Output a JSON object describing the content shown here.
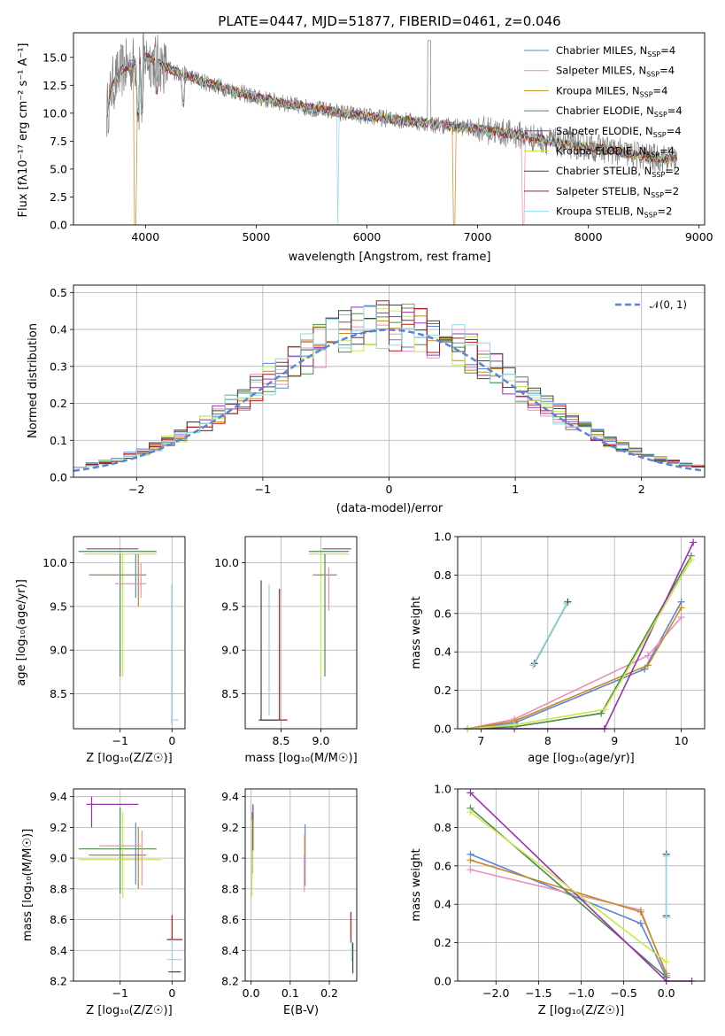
{
  "chart_data": [
    {
      "id": "spectrum",
      "type": "line",
      "title": "PLATE=0447, MJD=51877, FIBERID=0461, z=0.046",
      "xlabel": "wavelength [Angstrom, rest frame]",
      "ylabel": "Flux [fλ10⁻¹⁷ erg cm⁻² s⁻¹ A⁻¹]",
      "xlim": [
        3350,
        9050
      ],
      "ylim": [
        0,
        17.2
      ],
      "xticks": [
        "4000",
        "5000",
        "6000",
        "7000",
        "8000",
        "9000"
      ],
      "yticks": [
        "0.0",
        "2.5",
        "5.0",
        "7.5",
        "10.0",
        "12.5",
        "15.0"
      ],
      "xtick_values": [
        4000,
        5000,
        6000,
        7000,
        8000,
        9000
      ],
      "ytick_values": [
        0,
        2.5,
        5,
        7.5,
        10,
        12.5,
        15
      ],
      "continuum": {
        "x": [
          3650,
          3700,
          3800,
          3900,
          4000,
          4100,
          4200,
          4300,
          4400,
          4500,
          4600,
          4800,
          5000,
          5200,
          5400,
          5600,
          5800,
          6000,
          6200,
          6400,
          6600,
          6800,
          7000,
          7200,
          7400,
          7600,
          7800,
          8000,
          8200,
          8400,
          8600,
          8800
        ],
        "y": [
          10.0,
          12.5,
          14.0,
          14.5,
          15.0,
          14.6,
          14.0,
          13.6,
          13.3,
          12.9,
          12.6,
          12.0,
          11.4,
          11.0,
          10.6,
          10.3,
          10.0,
          9.7,
          9.5,
          9.3,
          9.0,
          8.8,
          8.6,
          8.3,
          8.0,
          7.6,
          7.2,
          7.0,
          6.7,
          6.3,
          6.0,
          5.9
        ]
      },
      "legend_position": "upper right",
      "series": [
        {
          "name": "Chabrier MILES, N",
          "sub": "SSP",
          "suffix": "=4",
          "color": "#5b84d6"
        },
        {
          "name": "Salpeter MILES, N",
          "sub": "SSP",
          "suffix": "=4",
          "color": "#e88fbf"
        },
        {
          "name": "Kroupa MILES, N",
          "sub": "SSP",
          "suffix": "=4",
          "color": "#c8891e"
        },
        {
          "name": "Chabrier ELODIE, N",
          "sub": "SSP",
          "suffix": "=4",
          "color": "#4e8a4e"
        },
        {
          "name": "Salpeter ELODIE, N",
          "sub": "SSP",
          "suffix": "=4",
          "color": "#9b30b0"
        },
        {
          "name": "Kroupa ELODIE, N",
          "sub": "SSP",
          "suffix": "=4",
          "color": "#c8e84a"
        },
        {
          "name": "Chabrier STELIB, N",
          "sub": "SSP",
          "suffix": "=2",
          "color": "#444444"
        },
        {
          "name": "Salpeter STELIB, N",
          "sub": "SSP",
          "suffix": "=2",
          "color": "#b01818"
        },
        {
          "name": "Kroupa STELIB, N",
          "sub": "SSP",
          "suffix": "=2",
          "color": "#8ed8e0"
        }
      ]
    },
    {
      "id": "residuals",
      "type": "bar",
      "xlabel": "(data-model)/error",
      "ylabel": "Normed distribution",
      "xlim": [
        -2.5,
        2.5
      ],
      "ylim": [
        0,
        0.52
      ],
      "xticks": [
        "−2",
        "−1",
        "0",
        "1",
        "2"
      ],
      "yticks": [
        "0.0",
        "0.1",
        "0.2",
        "0.3",
        "0.4",
        "0.5"
      ],
      "xtick_values": [
        -2,
        -1,
        0,
        1,
        2
      ],
      "ytick_values": [
        0,
        0.1,
        0.2,
        0.3,
        0.4,
        0.5
      ],
      "grid": true,
      "legend": {
        "label": "𝒩(0, 1)",
        "position": "upper right"
      },
      "reference_curve": {
        "name": "𝒩(0, 1)",
        "mean": 0,
        "sigma": 1,
        "color": "#5b84d6"
      }
    },
    {
      "id": "age-vs-z",
      "type": "scatter",
      "xlabel": "Z [log₁₀(Z/Z☉)]",
      "ylabel": "age  [log₁₀(age/yr)]",
      "xlim": [
        -1.9,
        0.25
      ],
      "ylim": [
        8.1,
        10.3
      ],
      "xticks": [
        "−1",
        "0"
      ],
      "xtick_values": [
        -1,
        0
      ],
      "yticks": [
        "8.5",
        "9.0",
        "9.5",
        "10.0"
      ],
      "ytick_values": [
        8.5,
        9.0,
        9.5,
        10.0
      ],
      "grid": true,
      "errorbars": [
        {
          "x": -1.15,
          "xerr": 0.5,
          "y": 10.16,
          "yerr": 0,
          "color": "#9b30b0"
        },
        {
          "x": -1.05,
          "xerr": 0.75,
          "y": 10.13,
          "yerr": 0,
          "color": "#4e8a4e"
        },
        {
          "x": -1.0,
          "xerr": 0.7,
          "y": 10.1,
          "yerr": 0,
          "color": "#c8e84a"
        },
        {
          "x": -1.0,
          "xerr": 0.0,
          "y": 9.4,
          "yerr": 0.7,
          "color": "#4e8a4e"
        },
        {
          "x": -0.95,
          "xerr": 0.0,
          "y": 9.4,
          "yerr": 0.7,
          "color": "#c8e84a"
        },
        {
          "x": -1.05,
          "xerr": 0.55,
          "y": 9.86,
          "yerr": 0,
          "color": "#5b84d6"
        },
        {
          "x": -1.05,
          "xerr": 0.55,
          "y": 9.86,
          "yerr": 0,
          "color": "#c8891e"
        },
        {
          "x": -0.7,
          "xerr": 0.0,
          "y": 9.85,
          "yerr": 0.25,
          "color": "#5b84d6"
        },
        {
          "x": -0.65,
          "xerr": 0.0,
          "y": 9.8,
          "yerr": 0.3,
          "color": "#c8891e"
        },
        {
          "x": -0.6,
          "xerr": 0.0,
          "y": 9.8,
          "yerr": 0.2,
          "color": "#e88fbf"
        },
        {
          "x": -0.8,
          "xerr": 0.3,
          "y": 9.76,
          "yerr": 0,
          "color": "#e88fbf"
        },
        {
          "x": 0.0,
          "xerr": 0.0,
          "y": 8.95,
          "yerr": 0.8,
          "color": "#444444"
        },
        {
          "x": 0.0,
          "xerr": 0.0,
          "y": 8.95,
          "yerr": 0.8,
          "color": "#8ed8e0"
        },
        {
          "x": 0.05,
          "xerr": 0.07,
          "y": 8.2,
          "yerr": 0,
          "color": "#8ed8e0"
        }
      ]
    },
    {
      "id": "age-vs-mass",
      "type": "scatter",
      "xlabel": "mass [log₁₀(M/M☉)]",
      "ylabel": "",
      "xlim": [
        8.05,
        9.45
      ],
      "ylim": [
        8.1,
        10.3
      ],
      "xticks": [
        "8.5",
        "9.0"
      ],
      "xtick_values": [
        8.5,
        9.0
      ],
      "yticks": [
        "8.5",
        "9.0",
        "9.5",
        "10.0"
      ],
      "ytick_values": [
        8.5,
        9.0,
        9.5,
        10.0
      ],
      "grid": true,
      "errorbars": [
        {
          "x": 9.2,
          "xerr": 0.18,
          "y": 10.16,
          "yerr": 0,
          "color": "#9b30b0"
        },
        {
          "x": 9.1,
          "xerr": 0.25,
          "y": 10.13,
          "yerr": 0,
          "color": "#4e8a4e"
        },
        {
          "x": 9.1,
          "xerr": 0.25,
          "y": 10.1,
          "yerr": 0,
          "color": "#c8e84a"
        },
        {
          "x": 9.0,
          "xerr": 0.0,
          "y": 9.4,
          "yerr": 0.7,
          "color": "#c8e84a"
        },
        {
          "x": 9.05,
          "xerr": 0.0,
          "y": 9.4,
          "yerr": 0.7,
          "color": "#4e8a4e"
        },
        {
          "x": 9.05,
          "xerr": 0.15,
          "y": 9.86,
          "yerr": 0,
          "color": "#5b84d6"
        },
        {
          "x": 9.05,
          "xerr": 0.15,
          "y": 9.86,
          "yerr": 0,
          "color": "#c8891e"
        },
        {
          "x": 9.1,
          "xerr": 0.0,
          "y": 9.7,
          "yerr": 0.25,
          "color": "#e88fbf"
        },
        {
          "x": 8.25,
          "xerr": 0.0,
          "y": 9.0,
          "yerr": 0.8,
          "color": "#444444"
        },
        {
          "x": 8.35,
          "xerr": 0.0,
          "y": 9.0,
          "yerr": 0.75,
          "color": "#8ed8e0"
        },
        {
          "x": 8.48,
          "xerr": 0.0,
          "y": 8.95,
          "yerr": 0.75,
          "color": "#b01818"
        },
        {
          "x": 8.4,
          "xerr": 0.18,
          "y": 8.2,
          "yerr": 0,
          "color": "#b01818"
        },
        {
          "x": 8.35,
          "xerr": 0.12,
          "y": 8.2,
          "yerr": 0,
          "color": "#444444"
        }
      ]
    },
    {
      "id": "massweight-vs-age",
      "type": "line",
      "xlabel": "age  [log₁₀(age/yr)]",
      "ylabel": "mass weight",
      "xlim": [
        6.65,
        10.35
      ],
      "ylim": [
        0,
        1.0
      ],
      "xticks": [
        "7",
        "8",
        "9",
        "10"
      ],
      "xtick_values": [
        7,
        8,
        9,
        10
      ],
      "yticks": [
        "0.0",
        "0.2",
        "0.4",
        "0.6",
        "0.8",
        "1.0"
      ],
      "ytick_values": [
        0,
        0.2,
        0.4,
        0.6,
        0.8,
        1.0
      ],
      "grid": true,
      "series": [
        {
          "color": "#5b84d6",
          "x": [
            6.8,
            7.5,
            9.45,
            10.0
          ],
          "y": [
            0.0,
            0.03,
            0.31,
            0.66
          ]
        },
        {
          "color": "#e88fbf",
          "x": [
            6.8,
            7.5,
            9.5,
            10.0
          ],
          "y": [
            0.0,
            0.05,
            0.38,
            0.58
          ]
        },
        {
          "color": "#c8891e",
          "x": [
            6.8,
            7.5,
            9.5,
            10.0
          ],
          "y": [
            0.0,
            0.04,
            0.33,
            0.63
          ]
        },
        {
          "color": "#4e8a4e",
          "x": [
            6.8,
            7.5,
            8.8,
            10.15
          ],
          "y": [
            0.0,
            0.01,
            0.08,
            0.9
          ]
        },
        {
          "color": "#9b30b0",
          "x": [
            6.8,
            7.5,
            8.85,
            10.18
          ],
          "y": [
            0.0,
            0.0,
            0.0,
            0.97
          ]
        },
        {
          "color": "#c8e84a",
          "x": [
            6.8,
            7.5,
            8.85,
            10.15
          ],
          "y": [
            0.0,
            0.02,
            0.1,
            0.88
          ]
        },
        {
          "color": "#444444",
          "x": [
            7.8,
            8.3
          ],
          "y": [
            0.34,
            0.66
          ]
        },
        {
          "color": "#8ed8e0",
          "x": [
            7.78,
            8.28
          ],
          "y": [
            0.33,
            0.65
          ]
        }
      ]
    },
    {
      "id": "mass-vs-z",
      "type": "scatter",
      "xlabel": "Z [log₁₀(Z/Z☉)]",
      "ylabel": "mass [log₁₀(M/M☉)]",
      "xlim": [
        -1.9,
        0.25
      ],
      "ylim": [
        8.2,
        9.45
      ],
      "xticks": [
        "−1",
        "0"
      ],
      "xtick_values": [
        -1,
        0
      ],
      "yticks": [
        "8.2",
        "8.4",
        "8.6",
        "8.8",
        "9.0",
        "9.2",
        "9.4"
      ],
      "ytick_values": [
        8.2,
        8.4,
        8.6,
        8.8,
        9.0,
        9.2,
        9.4
      ],
      "grid": true,
      "errorbars": [
        {
          "x": -1.15,
          "xerr": 0.5,
          "y": 9.35,
          "yerr": 0,
          "color": "#9b30b0"
        },
        {
          "x": -1.55,
          "xerr": 0.0,
          "y": 9.3,
          "yerr": 0.1,
          "color": "#9b30b0"
        },
        {
          "x": -1.0,
          "xerr": 0.0,
          "y": 9.05,
          "yerr": 0.28,
          "color": "#4e8a4e"
        },
        {
          "x": -1.05,
          "xerr": 0.75,
          "y": 9.06,
          "yerr": 0,
          "color": "#4e8a4e"
        },
        {
          "x": -0.95,
          "xerr": 0.0,
          "y": 9.02,
          "yerr": 0.28,
          "color": "#c8e84a"
        },
        {
          "x": -1.0,
          "xerr": 0.8,
          "y": 8.99,
          "yerr": 0,
          "color": "#c8e84a"
        },
        {
          "x": -1.05,
          "xerr": 0.55,
          "y": 9.02,
          "yerr": 0,
          "color": "#5b84d6"
        },
        {
          "x": -1.05,
          "xerr": 0.55,
          "y": 9.02,
          "yerr": 0,
          "color": "#c8891e"
        },
        {
          "x": -0.7,
          "xerr": 0.0,
          "y": 9.03,
          "yerr": 0.2,
          "color": "#5b84d6"
        },
        {
          "x": -0.65,
          "xerr": 0.0,
          "y": 9.0,
          "yerr": 0.2,
          "color": "#c8891e"
        },
        {
          "x": -0.58,
          "xerr": 0.0,
          "y": 9.0,
          "yerr": 0.18,
          "color": "#e88fbf"
        },
        {
          "x": -1.0,
          "xerr": 0.4,
          "y": 9.08,
          "yerr": 0,
          "color": "#e88fbf"
        },
        {
          "x": 0.0,
          "xerr": 0.0,
          "y": 8.55,
          "yerr": 0.08,
          "color": "#b01818"
        },
        {
          "x": 0.05,
          "xerr": 0.15,
          "y": 8.47,
          "yerr": 0,
          "color": "#b01818"
        },
        {
          "x": 0.0,
          "xerr": 0.0,
          "y": 8.4,
          "yerr": 0.07,
          "color": "#8ed8e0"
        },
        {
          "x": 0.05,
          "xerr": 0.15,
          "y": 8.34,
          "yerr": 0,
          "color": "#8ed8e0"
        },
        {
          "x": 0.05,
          "xerr": 0.12,
          "y": 8.26,
          "yerr": 0,
          "color": "#444444"
        }
      ]
    },
    {
      "id": "mass-vs-ebv",
      "type": "scatter",
      "xlabel": "E(B-V)",
      "ylabel": "",
      "xlim": [
        -0.015,
        0.27
      ],
      "ylim": [
        8.2,
        9.45
      ],
      "xticks": [
        "0.0",
        "0.1",
        "0.2"
      ],
      "xtick_values": [
        0,
        0.1,
        0.2
      ],
      "yticks": [
        "8.2",
        "8.4",
        "8.6",
        "8.8",
        "9.0",
        "9.2",
        "9.4"
      ],
      "ytick_values": [
        8.2,
        8.4,
        8.6,
        8.8,
        9.0,
        9.2,
        9.4
      ],
      "grid": true,
      "errorbars": [
        {
          "x": 0.005,
          "xerr": 0.0,
          "y": 9.2,
          "yerr": 0.15,
          "color": "#9b30b0"
        },
        {
          "x": 0.003,
          "xerr": 0.0,
          "y": 9.1,
          "yerr": 0.2,
          "color": "#4e8a4e"
        },
        {
          "x": 0.002,
          "xerr": 0.0,
          "y": 9.0,
          "yerr": 0.25,
          "color": "#c8e84a"
        },
        {
          "x": 0.138,
          "xerr": 0.0,
          "y": 9.02,
          "yerr": 0.2,
          "color": "#5b84d6"
        },
        {
          "x": 0.137,
          "xerr": 0.0,
          "y": 9.0,
          "yerr": 0.15,
          "color": "#c8891e"
        },
        {
          "x": 0.136,
          "xerr": 0.0,
          "y": 8.9,
          "yerr": 0.12,
          "color": "#e88fbf"
        },
        {
          "x": 0.255,
          "xerr": 0.0,
          "y": 8.55,
          "yerr": 0.1,
          "color": "#b01818"
        },
        {
          "x": 0.257,
          "xerr": 0.0,
          "y": 8.4,
          "yerr": 0.07,
          "color": "#8ed8e0"
        },
        {
          "x": 0.26,
          "xerr": 0.0,
          "y": 8.35,
          "yerr": 0.1,
          "color": "#444444"
        }
      ]
    },
    {
      "id": "massweight-vs-z",
      "type": "line",
      "xlabel": "Z [log₁₀(Z/Z☉)]",
      "ylabel": "mass weight",
      "xlim": [
        -2.45,
        0.45
      ],
      "ylim": [
        0,
        1.0
      ],
      "xticks": [
        "−2.0",
        "−1.5",
        "−1.0",
        "−0.5",
        "0.0"
      ],
      "xtick_values": [
        -2.0,
        -1.5,
        -1.0,
        -0.5,
        0.0
      ],
      "yticks": [
        "0.0",
        "0.2",
        "0.4",
        "0.6",
        "0.8",
        "1.0"
      ],
      "ytick_values": [
        0,
        0.2,
        0.4,
        0.6,
        0.8,
        1.0
      ],
      "grid": true,
      "series": [
        {
          "color": "#5b84d6",
          "x": [
            -2.3,
            -0.3,
            0.0
          ],
          "y": [
            0.66,
            0.3,
            0.02
          ]
        },
        {
          "color": "#e88fbf",
          "x": [
            -2.3,
            -0.3,
            0.0
          ],
          "y": [
            0.58,
            0.37,
            0.03
          ]
        },
        {
          "color": "#c8891e",
          "x": [
            -2.3,
            -0.3,
            0.0
          ],
          "y": [
            0.63,
            0.36,
            0.04
          ]
        },
        {
          "color": "#4e8a4e",
          "x": [
            -2.3,
            0.0
          ],
          "y": [
            0.9,
            0.02
          ]
        },
        {
          "color": "#9b30b0",
          "x": [
            -2.3,
            0.0,
            0.3
          ],
          "y": [
            0.98,
            0.0,
            0.0
          ]
        },
        {
          "color": "#c8e84a",
          "x": [
            -2.3,
            0.0
          ],
          "y": [
            0.88,
            0.1
          ]
        },
        {
          "color": "#444444",
          "x": [
            0.0,
            0.0
          ],
          "y": [
            0.34,
            0.66
          ]
        },
        {
          "color": "#8ed8e0",
          "x": [
            0.0,
            0.0
          ],
          "y": [
            0.33,
            0.65
          ]
        }
      ]
    }
  ]
}
